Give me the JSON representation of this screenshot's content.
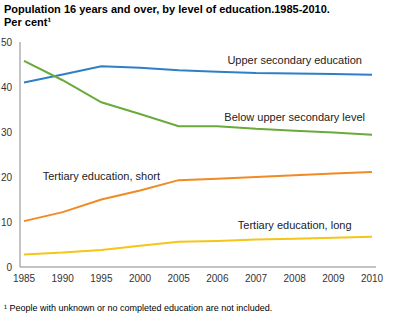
{
  "chart_data": {
    "type": "line",
    "title": "Population 16 years and over, by level of education.1985-2010.",
    "subtitle": "Per cent¹",
    "footnote": "¹ People with unknown or no completed education are not included.",
    "categories": [
      "1985",
      "1990",
      "1995",
      "2000",
      "2005",
      "2006",
      "2007",
      "2008",
      "2009",
      "2010"
    ],
    "series": [
      {
        "name": "Upper secondary education",
        "color": "#2f7fc6",
        "values": [
          41.0,
          42.8,
          44.6,
          44.3,
          43.7,
          43.4,
          43.1,
          43.0,
          42.9,
          42.7
        ]
      },
      {
        "name": "Below upper secondary level",
        "color": "#6aaa3a",
        "values": [
          45.8,
          41.5,
          36.6,
          34.0,
          31.3,
          31.3,
          30.7,
          30.3,
          29.9,
          29.4
        ]
      },
      {
        "name": "Tertiary education, short",
        "color": "#f08a24",
        "values": [
          10.2,
          12.2,
          15.0,
          17.0,
          19.3,
          19.6,
          20.0,
          20.4,
          20.8,
          21.1
        ]
      },
      {
        "name": "Tertiary education, long",
        "color": "#f5c518",
        "values": [
          2.8,
          3.2,
          3.8,
          4.7,
          5.6,
          5.8,
          6.1,
          6.3,
          6.5,
          6.7
        ]
      }
    ],
    "ylim": [
      0,
      50
    ],
    "yticks": [
      0,
      10,
      20,
      30,
      40,
      50
    ],
    "grid": false
  }
}
